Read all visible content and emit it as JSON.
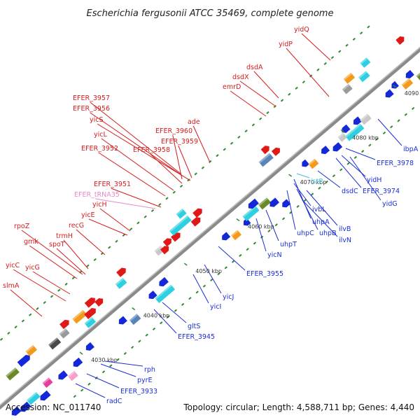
{
  "title": "Escherichia fergusonii ATCC 35469, complete genome",
  "footer": {
    "accession": "Accession: NC_011740",
    "summary": "Topology: circular; Length: 4,588,711 bp; Genes: 4,440"
  },
  "colors": {
    "backbone": "#8a8a8a",
    "tick": "#2e8b2e",
    "label_red": "#d41c1c",
    "label_blue": "#1c2fd4",
    "label_pink": "#e68ac8",
    "label_cyan": "#3cc0e0"
  },
  "kbp_ticks": [
    "4030 kbp",
    "4040 kbp",
    "4050 kbp",
    "4060 kbp",
    "4070 kbp",
    "4080 kbp",
    "4090 kbp"
  ],
  "labels": {
    "left": [
      {
        "text": "yidQ",
        "color": "red"
      },
      {
        "text": "yidP",
        "color": "red"
      },
      {
        "text": "dsdA",
        "color": "red"
      },
      {
        "text": "dsdX",
        "color": "red"
      },
      {
        "text": "emrD",
        "color": "red"
      },
      {
        "text": "EFER_3957",
        "color": "red"
      },
      {
        "text": "EFER_3956",
        "color": "red"
      },
      {
        "text": "yicS",
        "color": "red"
      },
      {
        "text": "ade",
        "color": "red"
      },
      {
        "text": "EFER_3960",
        "color": "red"
      },
      {
        "text": "yicL",
        "color": "red"
      },
      {
        "text": "EFER_3959",
        "color": "red"
      },
      {
        "text": "EFER_3952",
        "color": "red"
      },
      {
        "text": "EFER_3958",
        "color": "red"
      },
      {
        "text": "EFER_3951",
        "color": "red"
      },
      {
        "text": "EFER_tRNA35",
        "color": "pink"
      },
      {
        "text": "yicH",
        "color": "red"
      },
      {
        "text": "yicE",
        "color": "red"
      },
      {
        "text": "recG",
        "color": "red"
      },
      {
        "text": "rpoZ",
        "color": "red"
      },
      {
        "text": "trmH",
        "color": "red"
      },
      {
        "text": "gmk",
        "color": "red"
      },
      {
        "text": "spoT",
        "color": "red"
      },
      {
        "text": "yicC",
        "color": "red"
      },
      {
        "text": "yicG",
        "color": "red"
      },
      {
        "text": "slmA",
        "color": "red"
      }
    ],
    "right": [
      {
        "text": "ibpA",
        "color": "blue"
      },
      {
        "text": "EFER_3978",
        "color": "blue"
      },
      {
        "text": "yidH",
        "color": "blue"
      },
      {
        "text": "EFER_3974",
        "color": "blue"
      },
      {
        "text": "yidG",
        "color": "blue"
      },
      {
        "text": "dsdC",
        "color": "blue"
      },
      {
        "text": "istR",
        "color": "cyan"
      },
      {
        "text": "ivbL",
        "color": "blue"
      },
      {
        "text": "uhpA",
        "color": "blue"
      },
      {
        "text": "ilvB",
        "color": "blue"
      },
      {
        "text": "uhpC",
        "color": "blue"
      },
      {
        "text": "uhpB",
        "color": "blue"
      },
      {
        "text": "ilvN",
        "color": "blue"
      },
      {
        "text": "uhpT",
        "color": "blue"
      },
      {
        "text": "yicN",
        "color": "blue"
      },
      {
        "text": "EFER_3955",
        "color": "blue"
      },
      {
        "text": "yicJ",
        "color": "blue"
      },
      {
        "text": "yicI",
        "color": "blue"
      },
      {
        "text": "gltS",
        "color": "blue"
      },
      {
        "text": "EFER_3945",
        "color": "blue"
      },
      {
        "text": "rph",
        "color": "blue"
      },
      {
        "text": "pyrE",
        "color": "blue"
      },
      {
        "text": "EFER_3933",
        "color": "blue"
      },
      {
        "text": "radC",
        "color": "blue"
      }
    ]
  }
}
